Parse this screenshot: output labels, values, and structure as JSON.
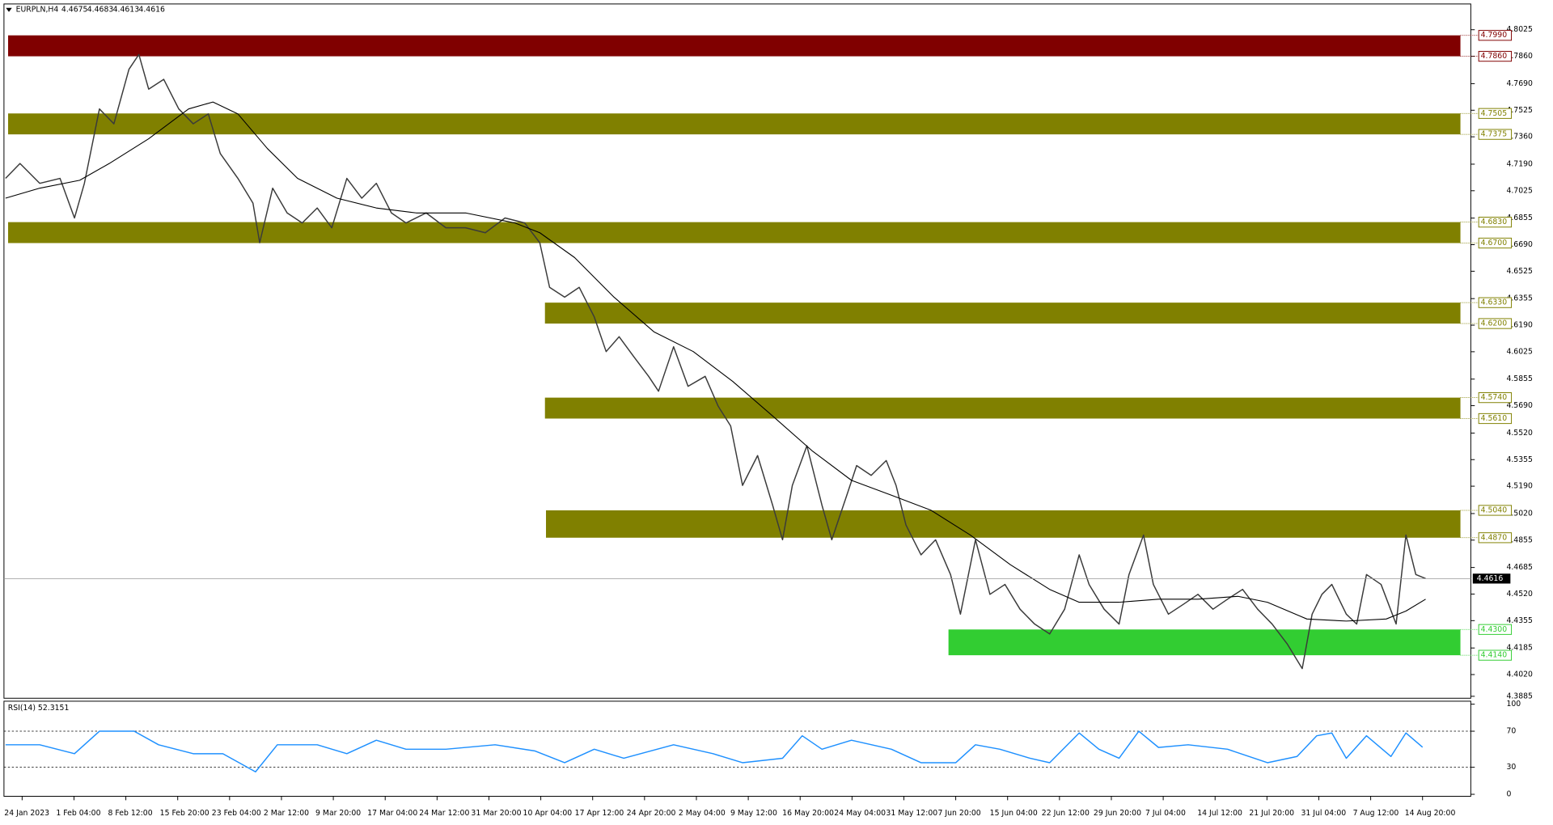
{
  "chart_data": [
    {
      "type": "line",
      "header": {
        "symbol": "EURPLN,H4",
        "open": 4.4675,
        "high": 4.4683,
        "low": 4.4613,
        "close": 4.4616
      },
      "xlim": [
        -0.35,
        27.93
      ],
      "ylim": [
        4.3873,
        4.8185
      ],
      "yticks": [
        4.8025,
        {
          "value": 4.786,
          "label": "4.7860"
        },
        {
          "value": 4.769,
          "label": "4.7690"
        },
        4.7525,
        {
          "value": 4.736,
          "label": "4.7360"
        },
        {
          "value": 4.719,
          "label": "4.7190"
        },
        4.7025,
        4.6855,
        {
          "value": 4.669,
          "label": "4.6690"
        },
        4.6525,
        4.6355,
        {
          "value": 4.619,
          "label": "4.6190"
        },
        4.6025,
        4.5855,
        {
          "value": 4.569,
          "label": "4.5690"
        },
        {
          "value": 4.552,
          "label": "4.5520"
        },
        4.5355,
        {
          "value": 4.519,
          "label": "4.5190"
        },
        {
          "value": 4.502,
          "label": "4.5020"
        },
        4.4855,
        4.4685,
        {
          "value": 4.452,
          "label": "4.4520"
        },
        4.4355,
        4.4185,
        {
          "value": 4.402,
          "label": "4.4020"
        },
        4.3885
      ],
      "xticks": [
        {
          "value": 0,
          "label": "24 Jan 2023"
        },
        {
          "value": 1,
          "label": "1 Feb 04:00"
        },
        {
          "value": 2,
          "label": "8 Feb 12:00"
        },
        {
          "value": 3,
          "label": "15 Feb 20:00"
        },
        {
          "value": 4,
          "label": "23 Feb 04:00"
        },
        {
          "value": 5,
          "label": "2 Mar 12:00"
        },
        {
          "value": 6,
          "label": "9 Mar 20:00"
        },
        {
          "value": 7,
          "label": "17 Mar 04:00"
        },
        {
          "value": 8,
          "label": "24 Mar 12:00"
        },
        {
          "value": 9,
          "label": "31 Mar 20:00"
        },
        {
          "value": 10,
          "label": "10 Apr 04:00"
        },
        {
          "value": 11,
          "label": "17 Apr 12:00"
        },
        {
          "value": 12,
          "label": "24 Apr 20:00"
        },
        {
          "value": 13,
          "label": "2 May 04:00"
        },
        {
          "value": 14,
          "label": "9 May 12:00"
        },
        {
          "value": 15,
          "label": "16 May 20:00"
        },
        {
          "value": 16,
          "label": "24 May 04:00"
        },
        {
          "value": 17,
          "label": "31 May 12:00"
        },
        {
          "value": 18,
          "label": "7 Jun 20:00"
        },
        {
          "value": 19,
          "label": "15 Jun 04:00"
        },
        {
          "value": 20,
          "label": "22 Jun 12:00"
        },
        {
          "value": 21,
          "label": "29 Jun 20:00"
        },
        {
          "value": 22,
          "label": "7 Jul 04:00"
        },
        {
          "value": 23,
          "label": "14 Jul 12:00"
        },
        {
          "value": 24,
          "label": "21 Jul 20:00"
        },
        {
          "value": 25,
          "label": "31 Jul 04:00"
        },
        {
          "value": 26,
          "label": "7 Aug 12:00"
        },
        {
          "value": 27,
          "label": "14 Aug 20:00"
        }
      ],
      "series": [
        {
          "color": "#3a3a3a",
          "x": [
            -0.32,
            -0.04,
            0.34,
            0.73,
            1.01,
            1.2,
            1.49,
            1.77,
            2.06,
            2.25,
            2.44,
            2.73,
            3.02,
            3.3,
            3.59,
            3.82,
            4.16,
            4.45,
            4.58,
            4.83,
            5.11,
            5.4,
            5.69,
            5.97,
            6.26,
            6.55,
            6.83,
            7.12,
            7.4,
            7.79,
            8.17,
            8.55,
            8.93,
            9.31,
            9.69,
            9.98,
            10.17,
            10.46,
            10.74,
            11.03,
            11.26,
            11.51,
            11.79,
            12.08,
            12.27,
            12.56,
            12.84,
            13.17,
            13.42,
            13.66,
            13.89,
            14.18,
            14.47,
            14.66,
            14.85,
            15.13,
            15.42,
            15.61,
            15.9,
            16.09,
            16.37,
            16.66,
            16.85,
            17.04,
            17.33,
            17.61,
            17.9,
            18.09,
            18.38,
            18.66,
            18.95,
            19.24,
            19.52,
            19.81,
            20.1,
            20.38,
            20.57,
            20.86,
            21.15,
            21.34,
            21.62,
            21.81,
            22.1,
            22.39,
            22.67,
            22.96,
            23.24,
            23.53,
            23.82,
            24.1,
            24.39,
            24.68,
            24.87,
            25.06,
            25.25,
            25.53,
            25.73,
            25.92,
            26.2,
            26.49,
            26.68,
            26.87,
            27.06
          ],
          "values": [
            4.7102,
            4.7194,
            4.7071,
            4.7102,
            4.6856,
            4.7071,
            4.7533,
            4.7441,
            4.7779,
            4.7871,
            4.7656,
            4.7717,
            4.7533,
            4.7441,
            4.7502,
            4.7256,
            4.7102,
            4.6948,
            4.6702,
            4.7041,
            4.6887,
            4.6825,
            4.6918,
            4.6795,
            4.7102,
            4.6979,
            4.7071,
            4.6887,
            4.6825,
            4.6887,
            4.6795,
            4.6795,
            4.6764,
            4.6856,
            4.6825,
            4.6702,
            4.6425,
            4.6364,
            4.6425,
            4.6241,
            4.6026,
            4.6118,
            4.5995,
            4.5872,
            4.578,
            4.6056,
            4.581,
            4.5872,
            4.5687,
            4.5564,
            4.5195,
            4.538,
            4.5072,
            4.4857,
            4.5195,
            4.5441,
            4.5072,
            4.4857,
            4.5134,
            4.5318,
            4.5257,
            4.5349,
            4.5195,
            4.4949,
            4.4764,
            4.4857,
            4.4641,
            4.4395,
            4.4857,
            4.4518,
            4.458,
            4.4426,
            4.4334,
            4.4272,
            4.4426,
            4.4764,
            4.458,
            4.4426,
            4.4334,
            4.4641,
            4.4887,
            4.458,
            4.4395,
            4.4457,
            4.4518,
            4.4426,
            4.4488,
            4.4549,
            4.4426,
            4.4334,
            4.4211,
            4.4057,
            4.4395,
            4.4518,
            4.458,
            4.4395,
            4.4334,
            4.4641,
            4.458,
            4.4334,
            4.4887,
            4.4641,
            4.4616
          ]
        },
        {
          "color": "#000000",
          "x": [
            -0.32,
            0.34,
            1.11,
            1.68,
            2.44,
            3.21,
            3.68,
            4.16,
            4.73,
            5.31,
            6.07,
            6.83,
            7.6,
            8.55,
            9.5,
            9.98,
            10.65,
            11.41,
            12.18,
            12.94,
            13.7,
            14.47,
            15.23,
            15.99,
            16.76,
            17.52,
            18.28,
            19.05,
            19.81,
            20.38,
            21.15,
            21.91,
            22.67,
            23.44,
            24.01,
            24.77,
            25.53,
            26.3,
            26.68,
            27.06
          ],
          "values": [
            4.6979,
            4.7041,
            4.709,
            4.7194,
            4.7348,
            4.7533,
            4.7576,
            4.7502,
            4.7287,
            4.7102,
            4.6979,
            4.6918,
            4.6887,
            4.6887,
            4.6825,
            4.6764,
            4.661,
            4.6364,
            4.6149,
            4.6026,
            4.5841,
            4.5626,
            4.541,
            4.5226,
            4.5134,
            4.5041,
            4.4887,
            4.4703,
            4.4549,
            4.4469,
            4.4469,
            4.4488,
            4.4488,
            4.4506,
            4.4469,
            4.4365,
            4.4352,
            4.4365,
            4.4414,
            4.4488
          ]
        }
      ],
      "zones": [
        {
          "color": "#800000",
          "start": -0.27,
          "end": 27.73,
          "top": {
            "value": 4.799,
            "label": "4.7990"
          },
          "bottom": {
            "value": 4.786,
            "label": "4.7860"
          }
        },
        {
          "color": "#808000",
          "start": -0.27,
          "end": 27.73,
          "top": {
            "value": 4.7505,
            "label": "4.7505"
          },
          "bottom": {
            "value": 4.7375,
            "label": "4.7375"
          }
        },
        {
          "color": "#808000",
          "start": -0.27,
          "end": 27.73,
          "top": {
            "value": 4.683,
            "label": "4.6830"
          },
          "bottom": {
            "value": 4.67,
            "label": "4.6700"
          }
        },
        {
          "color": "#808000",
          "start": 10.08,
          "end": 27.73,
          "top": {
            "value": 4.633,
            "label": "4.6330"
          },
          "bottom": {
            "value": 4.62,
            "label": "4.6200"
          }
        },
        {
          "color": "#808000",
          "start": 10.08,
          "end": 27.73,
          "top": {
            "value": 4.574,
            "label": "4.5740"
          },
          "bottom": {
            "value": 4.561,
            "label": "4.5610"
          }
        },
        {
          "color": "#808000",
          "start": 10.1,
          "end": 27.73,
          "top": {
            "value": 4.504,
            "label": "4.5040"
          },
          "bottom": {
            "value": 4.487,
            "label": "4.4870"
          }
        },
        {
          "color": "#32cd32",
          "start": 17.86,
          "end": 27.73,
          "top": {
            "value": 4.43,
            "label": "4.4300"
          },
          "bottom": {
            "value": 4.414,
            "label": "4.4140"
          }
        }
      ],
      "last_price": 4.4616
    },
    {
      "type": "line",
      "title": "RSI(14) 52.3151",
      "ylim": [
        0,
        100
      ],
      "yticks": [
        100,
        70,
        30,
        0
      ],
      "levels": [
        70,
        30
      ],
      "series": [
        {
          "color": "#1e90ff",
          "x": [
            -0.32,
            0.34,
            1.01,
            1.49,
            2.16,
            2.63,
            3.3,
            3.87,
            4.5,
            4.92,
            5.69,
            6.26,
            6.83,
            7.4,
            8.17,
            9.12,
            9.89,
            10.46,
            11.03,
            11.6,
            12.56,
            13.32,
            13.89,
            14.66,
            15.04,
            15.42,
            15.99,
            16.76,
            17.33,
            18.0,
            18.38,
            18.85,
            19.43,
            19.81,
            20.38,
            20.76,
            21.15,
            21.53,
            21.91,
            22.48,
            23.24,
            24.01,
            24.58,
            24.96,
            25.25,
            25.53,
            25.92,
            26.39,
            26.68,
            27.0
          ],
          "values": [
            55,
            55,
            45,
            70,
            70,
            55,
            45,
            45,
            25,
            55,
            55,
            45,
            60,
            50,
            50,
            55,
            48,
            35,
            50,
            40,
            55,
            45,
            35,
            40,
            65,
            50,
            60,
            50,
            35,
            35,
            55,
            50,
            40,
            35,
            68,
            50,
            40,
            70,
            52,
            55,
            50,
            35,
            42,
            65,
            68,
            40,
            65,
            42,
            68,
            52.3
          ]
        }
      ]
    }
  ]
}
